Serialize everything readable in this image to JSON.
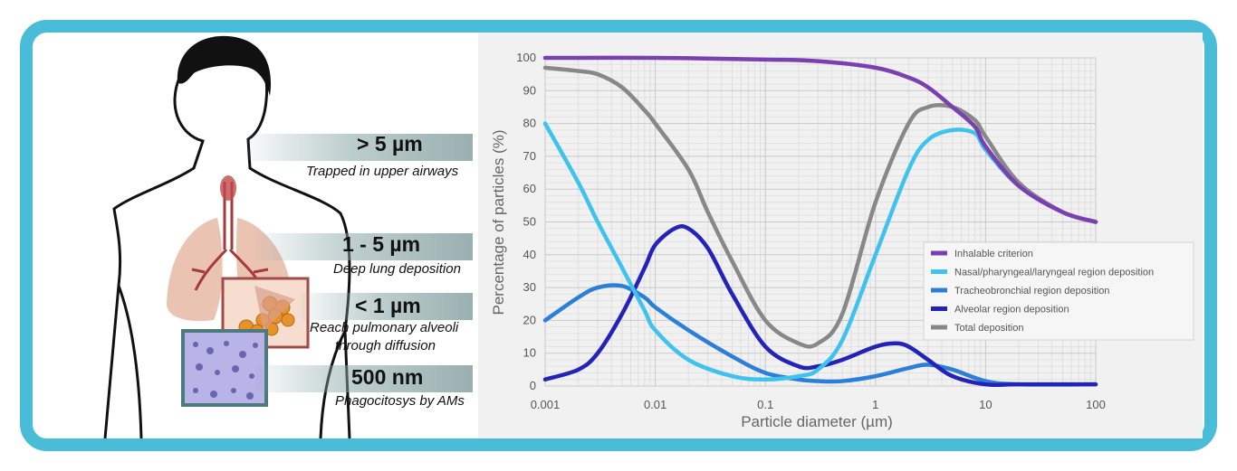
{
  "colors": {
    "frame": "#49bdd8",
    "chart_bg": "#f1f1f1"
  },
  "infographic": {
    "bands": [
      {
        "size": "> 5 µm",
        "desc": [
          "Trapped in upper airways"
        ]
      },
      {
        "size": "1 - 5 µm",
        "desc": [
          "Deep lung deposition"
        ]
      },
      {
        "size": "< 1 µm",
        "desc": [
          "Reach pulmonary alveoli",
          "through diffusion"
        ]
      },
      {
        "size": "500 nm",
        "desc": [
          "Phagocitosys by AMs"
        ]
      }
    ]
  },
  "chart_data": {
    "type": "line",
    "xlabel": "Particle diameter (µm)",
    "ylabel": "Percentage of particles (%)",
    "xscale": "log",
    "xlim": [
      0.001,
      100
    ],
    "ylim": [
      0,
      100
    ],
    "x_ticks": [
      "0.001",
      "0.01",
      "0.1",
      "1",
      "10",
      "100"
    ],
    "y_ticks": [
      "0",
      "10",
      "20",
      "30",
      "40",
      "50",
      "60",
      "70",
      "80",
      "90",
      "100"
    ],
    "grid": true,
    "legend_position": "right",
    "series": [
      {
        "name": "Inhalable criterion",
        "color": "#7a3fb0",
        "x": [
          0.001,
          0.01,
          0.1,
          0.3,
          1,
          2,
          3,
          5,
          8,
          10,
          20,
          50,
          100
        ],
        "y": [
          100,
          100,
          99.5,
          99,
          97,
          94,
          91,
          85,
          79,
          73,
          61,
          53,
          50
        ]
      },
      {
        "name": "Nasal/pharyngeal/laryngeal region deposition",
        "color": "#3fc3ee",
        "x": [
          0.001,
          0.002,
          0.003,
          0.005,
          0.008,
          0.01,
          0.02,
          0.05,
          0.1,
          0.2,
          0.3,
          0.5,
          1,
          2,
          3,
          5,
          8,
          10,
          20,
          50,
          100
        ],
        "y": [
          80,
          62,
          50,
          36,
          23,
          17,
          8,
          3,
          2,
          3,
          5,
          14,
          40,
          66,
          75,
          78,
          77,
          72,
          61,
          53,
          50
        ]
      },
      {
        "name": "Tracheobronchial region deposition",
        "color": "#2b7fd9",
        "x": [
          0.001,
          0.002,
          0.003,
          0.005,
          0.008,
          0.01,
          0.02,
          0.05,
          0.1,
          0.2,
          0.3,
          0.5,
          1,
          2,
          3,
          5,
          10,
          20,
          100
        ],
        "y": [
          20,
          27,
          30,
          30.5,
          27,
          24,
          17,
          9,
          4,
          2,
          1.5,
          1.5,
          3,
          5.5,
          6.5,
          5,
          1.5,
          0.5,
          0.5
        ]
      },
      {
        "name": "Alveolar region deposition",
        "color": "#2323b8",
        "x": [
          0.001,
          0.002,
          0.003,
          0.005,
          0.008,
          0.01,
          0.015,
          0.02,
          0.03,
          0.05,
          0.1,
          0.2,
          0.3,
          0.5,
          1,
          1.5,
          2,
          3,
          5,
          10,
          20,
          100
        ],
        "y": [
          2,
          5,
          10,
          22,
          36,
          43,
          48,
          48,
          42,
          28,
          12,
          6,
          6,
          8,
          12,
          13,
          12,
          8,
          3,
          0.5,
          0.5,
          0.5
        ]
      },
      {
        "name": "Total deposition",
        "color": "#888888",
        "x": [
          0.001,
          0.002,
          0.003,
          0.005,
          0.008,
          0.01,
          0.02,
          0.03,
          0.05,
          0.1,
          0.2,
          0.3,
          0.5,
          1,
          2,
          3,
          5,
          8,
          10,
          20,
          50,
          100
        ],
        "y": [
          97,
          96,
          95,
          91,
          84,
          80,
          66,
          53,
          38,
          20,
          13,
          13,
          22,
          56,
          80,
          85,
          85,
          81,
          76,
          62,
          53,
          50
        ]
      }
    ]
  }
}
